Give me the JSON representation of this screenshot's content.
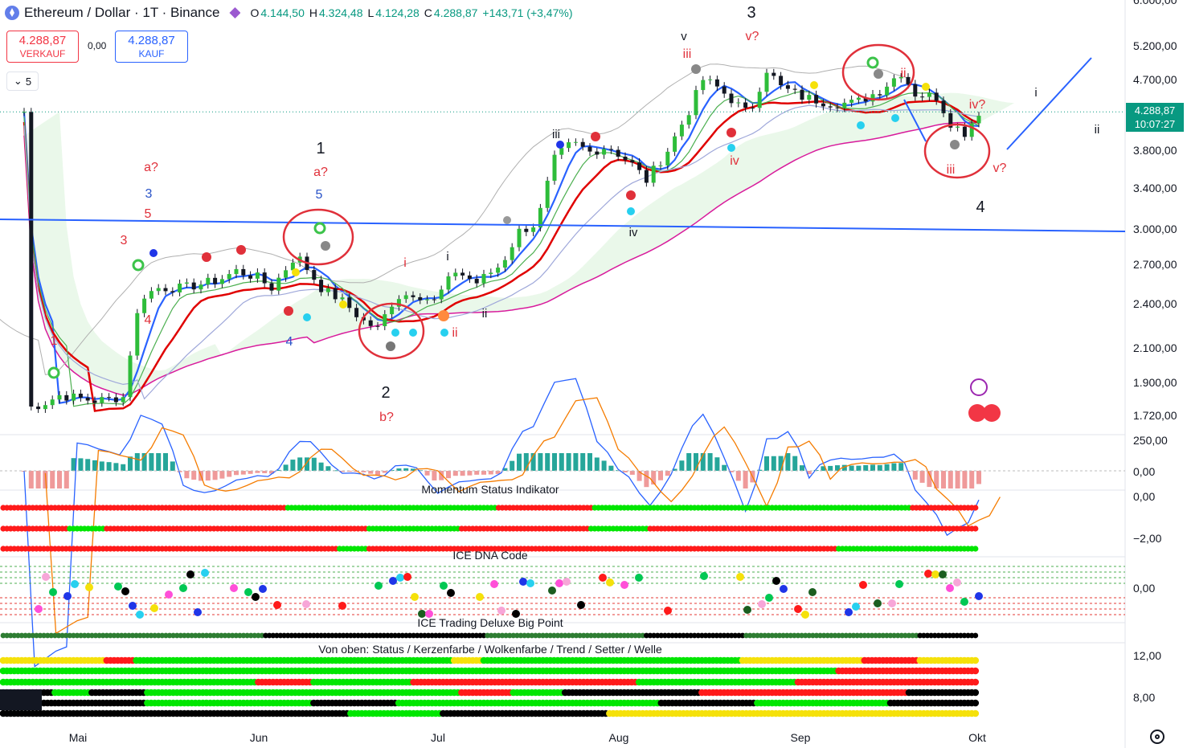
{
  "header": {
    "symbol": "Ethereum / Dollar · 1T · Binance",
    "open_label": "O",
    "open": "4.144,50",
    "high_label": "H",
    "high": "4.324,48",
    "low_label": "L",
    "low": "4.124,28",
    "close_label": "C",
    "close": "4.288,87",
    "change": "+143,71 (+3,47%)"
  },
  "trade": {
    "sell_price": "4.288,87",
    "sell_label": "VERKAUF",
    "spread": "0,00",
    "buy_price": "4.288,87",
    "buy_label": "KAUF"
  },
  "indicator_collapse": "5",
  "last_price": {
    "price": "4.288,87",
    "countdown": "10:07:27"
  },
  "colors": {
    "up": "#089981",
    "down": "#f23645",
    "blue": "#2962ff",
    "cloud": "#e8f7e8"
  },
  "price_axis": [
    "6.000,00",
    "5.200,00",
    "4.700,00",
    "4.288,87",
    "3.800,00",
    "3.400,00",
    "3.000,00",
    "2.700,00",
    "2.400,00",
    "2.100,00",
    "1.900,00",
    "1.720,00"
  ],
  "macd_axis": [
    "250,00",
    "0,00"
  ],
  "momentum_axis": [
    "0,00",
    "−2,00"
  ],
  "dna_axis": [
    "0,00"
  ],
  "big_axis": [
    "12,00",
    "8,00"
  ],
  "panel_titles": {
    "momentum": "Momentum Status Indikator",
    "dna": "ICE DNA Code",
    "bigpoint": "ICE Trading Deluxe Big Point",
    "legend": "Von oben: Status / Kerzenfarbe / Wolkenfarbe / Trend / Setter / Welle"
  },
  "time_axis": [
    "Mai",
    "Jun",
    "Jul",
    "Aug",
    "Sep",
    "Okt"
  ],
  "wave_labels": {
    "black": [
      "1",
      "2",
      "3",
      "4",
      "v",
      "iii",
      "i",
      "ii",
      "iv",
      "i",
      "ii"
    ],
    "red": [
      "a?",
      "5",
      "3",
      "4",
      "1",
      "a?",
      "b?",
      "i",
      "ii",
      "iii",
      "iv",
      "v?",
      "ii",
      "iv?",
      "iii",
      "v?"
    ],
    "blue": [
      "3",
      "5",
      "4"
    ]
  },
  "chart_data": {
    "type": "candlestick",
    "ylim": [
      1720,
      6000
    ],
    "x": [
      "Mai",
      "Jun",
      "Jul",
      "Aug",
      "Sep",
      "Okt"
    ],
    "approx_closes": [
      [
        1,
        1760
      ],
      [
        5,
        1780
      ],
      [
        10,
        1830
      ],
      [
        20,
        1800
      ],
      [
        28,
        1820
      ],
      [
        33,
        2450
      ],
      [
        38,
        2520
      ],
      [
        45,
        2520
      ],
      [
        55,
        2580
      ],
      [
        60,
        2650
      ],
      [
        66,
        2600
      ],
      [
        70,
        2520
      ],
      [
        77,
        2780
      ],
      [
        84,
        2520
      ],
      [
        90,
        2420
      ],
      [
        96,
        2280
      ],
      [
        100,
        2230
      ],
      [
        105,
        2450
      ],
      [
        110,
        2480
      ],
      [
        116,
        2420
      ],
      [
        122,
        2650
      ],
      [
        128,
        2560
      ],
      [
        135,
        2700
      ],
      [
        140,
        2980
      ],
      [
        145,
        3050
      ],
      [
        150,
        3700
      ],
      [
        155,
        3900
      ],
      [
        160,
        3780
      ],
      [
        165,
        3850
      ],
      [
        172,
        3650
      ],
      [
        176,
        3480
      ],
      [
        182,
        3800
      ],
      [
        188,
        4300
      ],
      [
        192,
        4700
      ],
      [
        196,
        4600
      ],
      [
        200,
        4450
      ],
      [
        205,
        4250
      ],
      [
        210,
        4850
      ],
      [
        214,
        4600
      ],
      [
        220,
        4480
      ],
      [
        228,
        4400
      ],
      [
        235,
        4400
      ],
      [
        242,
        4560
      ],
      [
        248,
        4800
      ],
      [
        252,
        4520
      ],
      [
        258,
        4480
      ],
      [
        262,
        4150
      ],
      [
        266,
        4020
      ],
      [
        270,
        4288.87
      ]
    ],
    "last_close": 4288.87,
    "horizontal_line": 3000
  }
}
